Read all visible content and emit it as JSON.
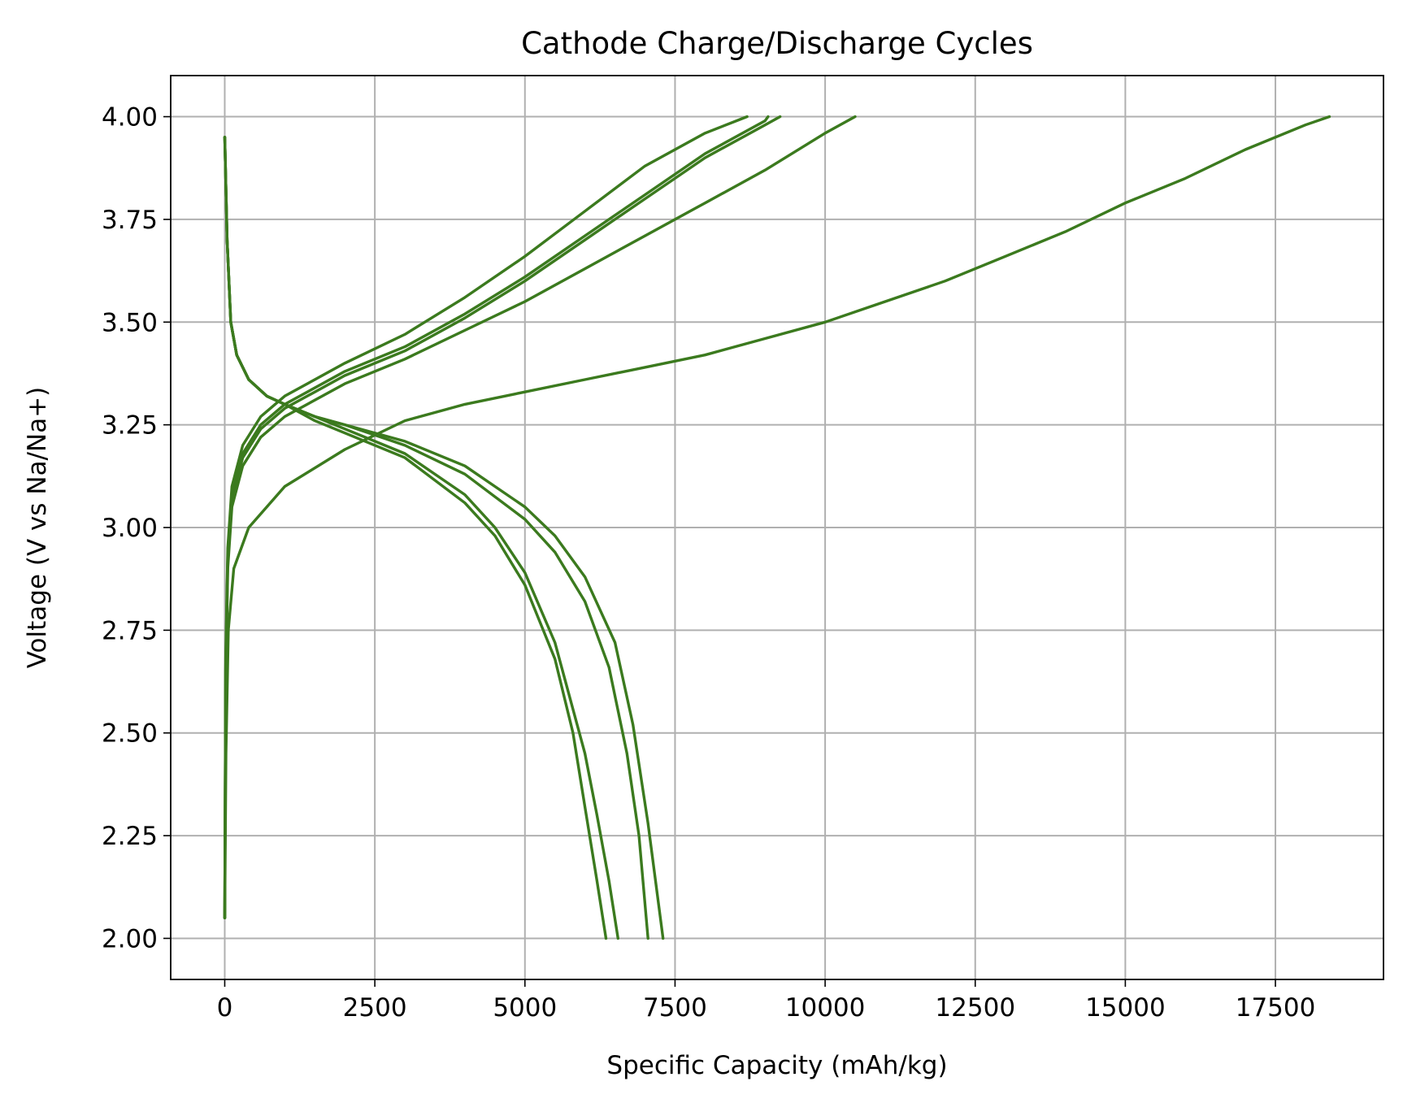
{
  "chart_data": {
    "type": "line",
    "title": "Cathode Charge/Discharge Cycles",
    "xlabel": "Specific Capacity (mAh/kg)",
    "ylabel": "Voltage (V vs Na/Na+)",
    "xlim": [
      -900,
      19300
    ],
    "ylim": [
      1.9,
      4.1
    ],
    "xticks": [
      0,
      2500,
      5000,
      7500,
      10000,
      12500,
      15000,
      17500
    ],
    "xtick_labels": [
      "0",
      "2500",
      "5000",
      "7500",
      "10000",
      "12500",
      "15000",
      "17500"
    ],
    "yticks": [
      2.0,
      2.25,
      2.5,
      2.75,
      3.0,
      3.25,
      3.5,
      3.75,
      4.0
    ],
    "ytick_labels": [
      "2.00",
      "2.25",
      "2.50",
      "2.75",
      "3.00",
      "3.25",
      "3.50",
      "3.75",
      "4.00"
    ],
    "grid": true,
    "legend": false,
    "color": "#3b7a1e",
    "series": [
      {
        "segment": "charge",
        "x": [
          0,
          20,
          60,
          150,
          400,
          1000,
          2000,
          3000,
          4000,
          5000,
          6000,
          7000,
          8000,
          9000,
          10000,
          11000,
          12000,
          13000,
          14000,
          15000,
          16000,
          17000,
          18000,
          18400
        ],
        "y": [
          2.05,
          2.45,
          2.75,
          2.9,
          3.0,
          3.1,
          3.19,
          3.26,
          3.3,
          3.33,
          3.36,
          3.39,
          3.42,
          3.46,
          3.5,
          3.55,
          3.6,
          3.66,
          3.72,
          3.79,
          3.85,
          3.92,
          3.98,
          4.0
        ]
      },
      {
        "segment": "charge",
        "x": [
          0,
          15,
          50,
          120,
          300,
          600,
          1000,
          1500,
          2000,
          3000,
          4000,
          5000,
          6000,
          7000,
          8000,
          9000,
          10000,
          10500
        ],
        "y": [
          2.05,
          2.6,
          2.9,
          3.05,
          3.15,
          3.22,
          3.27,
          3.31,
          3.35,
          3.41,
          3.48,
          3.55,
          3.63,
          3.71,
          3.79,
          3.87,
          3.96,
          4.0
        ]
      },
      {
        "segment": "charge",
        "x": [
          0,
          15,
          50,
          120,
          300,
          600,
          1000,
          1500,
          2000,
          3000,
          4000,
          5000,
          6000,
          7000,
          8000,
          9000,
          9250
        ],
        "y": [
          2.05,
          2.65,
          2.92,
          3.07,
          3.17,
          3.24,
          3.29,
          3.33,
          3.37,
          3.43,
          3.51,
          3.6,
          3.7,
          3.8,
          3.9,
          3.98,
          4.0
        ]
      },
      {
        "segment": "charge",
        "x": [
          0,
          15,
          50,
          120,
          300,
          600,
          1000,
          1500,
          2000,
          3000,
          4000,
          5000,
          6000,
          7000,
          8000,
          9000,
          9050
        ],
        "y": [
          2.05,
          2.66,
          2.93,
          3.08,
          3.18,
          3.25,
          3.3,
          3.34,
          3.38,
          3.44,
          3.52,
          3.61,
          3.71,
          3.81,
          3.91,
          3.99,
          4.0
        ]
      },
      {
        "segment": "charge",
        "x": [
          0,
          15,
          50,
          120,
          300,
          600,
          1000,
          1500,
          2000,
          3000,
          4000,
          5000,
          6000,
          7000,
          8000,
          8700
        ],
        "y": [
          2.05,
          2.68,
          2.95,
          3.1,
          3.2,
          3.27,
          3.32,
          3.36,
          3.4,
          3.47,
          3.56,
          3.66,
          3.77,
          3.88,
          3.96,
          4.0
        ]
      },
      {
        "segment": "discharge",
        "x": [
          0,
          40,
          100,
          200,
          400,
          700,
          1000,
          1500,
          2000,
          3000,
          4000,
          4500,
          5000,
          5500,
          5800,
          6000,
          6200,
          6350
        ],
        "y": [
          3.95,
          3.7,
          3.5,
          3.42,
          3.36,
          3.32,
          3.3,
          3.26,
          3.23,
          3.17,
          3.06,
          2.98,
          2.86,
          2.68,
          2.5,
          2.32,
          2.14,
          2.0
        ]
      },
      {
        "segment": "discharge",
        "x": [
          0,
          40,
          100,
          200,
          400,
          700,
          1000,
          1500,
          2000,
          3000,
          4000,
          4500,
          5000,
          5500,
          6000,
          6200,
          6400,
          6550
        ],
        "y": [
          3.95,
          3.7,
          3.5,
          3.42,
          3.36,
          3.32,
          3.3,
          3.27,
          3.24,
          3.18,
          3.08,
          3.0,
          2.89,
          2.72,
          2.45,
          2.3,
          2.14,
          2.0
        ]
      },
      {
        "segment": "discharge",
        "x": [
          0,
          40,
          100,
          200,
          400,
          700,
          1000,
          1500,
          2000,
          3000,
          4000,
          5000,
          5500,
          6000,
          6400,
          6700,
          6900,
          7050
        ],
        "y": [
          3.95,
          3.7,
          3.5,
          3.42,
          3.36,
          3.32,
          3.3,
          3.27,
          3.25,
          3.2,
          3.13,
          3.02,
          2.94,
          2.82,
          2.66,
          2.45,
          2.25,
          2.0
        ]
      },
      {
        "segment": "discharge",
        "x": [
          0,
          40,
          100,
          200,
          400,
          700,
          1000,
          1500,
          2000,
          3000,
          4000,
          5000,
          5500,
          6000,
          6500,
          6800,
          7050,
          7300
        ],
        "y": [
          3.95,
          3.7,
          3.5,
          3.42,
          3.36,
          3.32,
          3.3,
          3.27,
          3.25,
          3.21,
          3.15,
          3.05,
          2.98,
          2.88,
          2.72,
          2.52,
          2.28,
          2.0
        ]
      }
    ]
  }
}
